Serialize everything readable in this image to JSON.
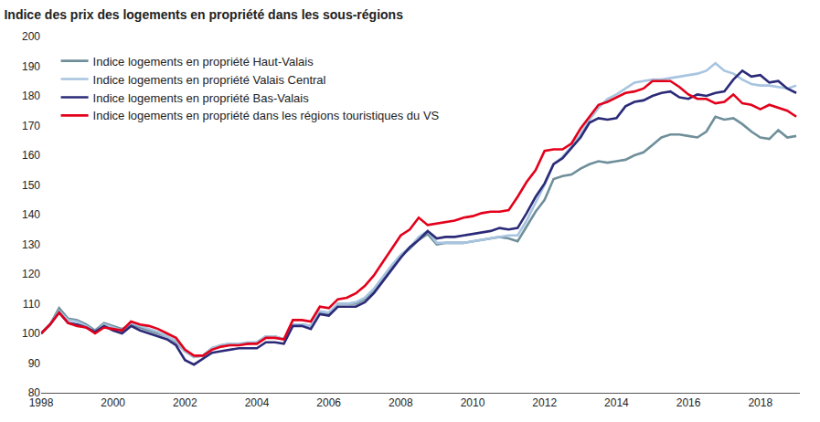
{
  "chart_data": {
    "type": "line",
    "title": "Indice des prix des logements en propriété dans les sous-régions",
    "x": [
      1998,
      1998.25,
      1998.5,
      1998.75,
      1999,
      1999.25,
      1999.5,
      1999.75,
      2000,
      2000.25,
      2000.5,
      2000.75,
      2001,
      2001.25,
      2001.5,
      2001.75,
      2002,
      2002.25,
      2002.5,
      2002.75,
      2003,
      2003.25,
      2003.5,
      2003.75,
      2004,
      2004.25,
      2004.5,
      2004.75,
      2005,
      2005.25,
      2005.5,
      2005.75,
      2006,
      2006.25,
      2006.5,
      2006.75,
      2007,
      2007.25,
      2007.5,
      2007.75,
      2008,
      2008.25,
      2008.5,
      2008.75,
      2009,
      2009.25,
      2009.5,
      2009.75,
      2010,
      2010.25,
      2010.5,
      2010.75,
      2011,
      2011.25,
      2011.5,
      2011.75,
      2012,
      2012.25,
      2012.5,
      2012.75,
      2013,
      2013.25,
      2013.5,
      2013.75,
      2014,
      2014.25,
      2014.5,
      2014.75,
      2015,
      2015.25,
      2015.5,
      2015.75,
      2016,
      2016.25,
      2016.5,
      2016.75,
      2017,
      2017.25,
      2017.5,
      2017.75,
      2018,
      2018.25,
      2018.5,
      2018.75,
      2019
    ],
    "xlim": [
      1998,
      2019.1
    ],
    "xticks": [
      1998,
      2000,
      2002,
      2004,
      2006,
      2008,
      2010,
      2012,
      2014,
      2016,
      2018
    ],
    "ylim": [
      80,
      200
    ],
    "yticks": [
      80,
      90,
      100,
      110,
      120,
      130,
      140,
      150,
      160,
      170,
      180,
      190,
      200
    ],
    "grid": false,
    "legend": "top-left",
    "series": [
      {
        "name": "Indice logements en propriété Haut-Valais",
        "color": "#6f8f9a",
        "values": [
          100,
          103,
          108.5,
          105,
          104.5,
          103,
          101,
          103.5,
          102.5,
          101.5,
          103,
          102,
          101,
          100,
          99,
          97,
          94,
          92,
          92.5,
          95,
          96,
          96.5,
          96.5,
          96.5,
          97,
          99,
          99,
          98,
          103,
          103,
          102.5,
          107,
          106.5,
          110,
          110,
          110,
          111.5,
          114,
          118,
          122,
          126,
          128.5,
          131.5,
          133.5,
          130,
          130.5,
          130.5,
          130.5,
          131,
          131.5,
          132,
          132.5,
          132,
          131,
          136,
          141,
          145,
          152,
          153,
          153.5,
          155.5,
          157,
          158,
          157.5,
          158,
          158.5,
          160,
          161,
          163.5,
          166,
          167,
          167,
          166.5,
          166,
          168,
          173,
          172,
          172.5,
          170.5,
          168,
          166,
          165.5,
          168.5,
          166,
          166.5
        ]
      },
      {
        "name": "Indice logements en propriété Valais Central",
        "color": "#a7c4e0",
        "values": [
          100,
          103,
          107.5,
          104.5,
          104,
          102.5,
          100.5,
          103,
          102,
          101,
          103.5,
          102.5,
          101.5,
          100.5,
          99,
          97.5,
          94,
          92,
          92.5,
          95,
          96,
          96.5,
          96.5,
          97,
          97,
          99,
          99,
          98,
          103,
          103,
          102.5,
          107.5,
          107,
          110,
          110,
          110.5,
          112,
          115,
          119,
          123,
          126.5,
          129,
          132.5,
          134.5,
          130.5,
          130.5,
          130.5,
          130.5,
          131,
          131.5,
          132,
          132.5,
          133,
          133,
          138,
          144,
          150,
          157,
          159.5,
          163,
          167,
          172,
          176,
          179,
          180.5,
          182.5,
          184.5,
          185,
          185.5,
          185.5,
          186,
          186.5,
          187,
          187.5,
          188.5,
          191,
          188.5,
          187.5,
          185.5,
          184,
          183.5,
          183.5,
          183,
          182.5,
          183.5
        ]
      },
      {
        "name": "Indice logements en propriété Bas-Valais",
        "color": "#2b2a78",
        "values": [
          100,
          103,
          107,
          103.5,
          103,
          102,
          100.5,
          102.5,
          101,
          100,
          102.5,
          101,
          100,
          99,
          98,
          96,
          91,
          89.5,
          91.5,
          93.5,
          94,
          94.5,
          95,
          95,
          95,
          97,
          97,
          96.5,
          102.5,
          102.5,
          101.5,
          106.5,
          106,
          109,
          109,
          109,
          110.5,
          113.5,
          117.5,
          121.5,
          125.5,
          129,
          131.5,
          134.5,
          132,
          132.5,
          132.5,
          133,
          133.5,
          134,
          134.5,
          135.5,
          135,
          135.5,
          140.5,
          146,
          150.5,
          157,
          159,
          162.5,
          166,
          171,
          172.5,
          172,
          172.5,
          176.5,
          178,
          178.5,
          180,
          181,
          181.5,
          179.5,
          179,
          180.5,
          180,
          181,
          181.5,
          185.5,
          188.5,
          186.5,
          187,
          184.5,
          185,
          182.5,
          181
        ]
      },
      {
        "name": "Indice logements en propriété dans les régions touristiques du VS",
        "color": "#e3001b",
        "values": [
          100,
          103,
          107,
          103.5,
          102.5,
          102,
          100,
          102,
          101.5,
          101,
          104,
          103,
          102.5,
          101.5,
          100,
          98.5,
          94.5,
          92.5,
          92.5,
          94.5,
          95.5,
          96,
          96,
          96.5,
          96.5,
          98.5,
          98.5,
          98,
          104.5,
          104.5,
          104,
          109,
          108.5,
          111.5,
          112,
          113.5,
          116,
          119.5,
          124,
          128.5,
          133,
          135,
          139,
          136.5,
          137,
          137.5,
          138,
          139,
          139.5,
          140.5,
          141,
          141,
          141.5,
          146,
          151,
          155,
          161.5,
          162,
          162,
          164,
          169,
          173,
          177,
          178,
          179.5,
          181,
          181.5,
          182.5,
          185,
          185,
          185,
          183,
          180.5,
          179,
          179,
          177.5,
          178,
          180.5,
          177.5,
          177,
          175.5,
          177,
          176,
          175,
          173
        ]
      }
    ]
  }
}
